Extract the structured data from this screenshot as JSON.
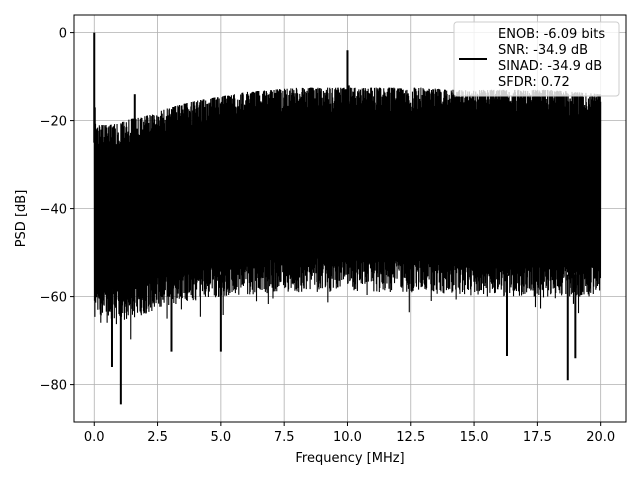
{
  "chart_data": {
    "type": "line",
    "title": "",
    "xlabel": "Frequency [MHz]",
    "ylabel": "PSD [dB]",
    "xlim": [
      -0.8,
      21.0
    ],
    "ylim": [
      -88.5,
      4.0
    ],
    "xticks": [
      0.0,
      2.5,
      5.0,
      7.5,
      10.0,
      12.5,
      15.0,
      17.5,
      20.0
    ],
    "xtick_labels": [
      "0.0",
      "2.5",
      "5.0",
      "7.5",
      "10.0",
      "12.5",
      "15.0",
      "17.5",
      "20.0"
    ],
    "yticks": [
      0,
      -20,
      -40,
      -60,
      -80
    ],
    "ytick_labels": [
      "0",
      "−20",
      "−40",
      "−60",
      "−80"
    ],
    "grid": true,
    "legend_position": "upper right",
    "line_color": "#000000",
    "series": [
      {
        "legend_lines": [
          "ENOB: -6.09 bits",
          "SNR: -34.9 dB",
          "SINAD: -34.9 dB",
          "SFDR: 0.72"
        ],
        "x_range": [
          0.0,
          20.0
        ],
        "upper_envelope": {
          "x": [
            0.0,
            0.1,
            0.5,
            1.0,
            1.5,
            2.0,
            2.5,
            3.0,
            4.0,
            5.0,
            6.0,
            7.0,
            8.0,
            9.0,
            10.0,
            11.0,
            12.0,
            13.0,
            14.0,
            15.0,
            16.0,
            17.0,
            18.0,
            19.0,
            20.0
          ],
          "y": [
            -20,
            -21,
            -21,
            -20.5,
            -19.5,
            -19,
            -18,
            -17,
            -15.5,
            -14.5,
            -13.5,
            -13,
            -12.5,
            -12.5,
            -12.5,
            -12.5,
            -12.5,
            -12.5,
            -13,
            -13,
            -13,
            -13,
            -13,
            -13.5,
            -14
          ]
        },
        "noise_floor": {
          "x": [
            0.0,
            1.0,
            2.0,
            3.0,
            5.0,
            7.5,
            10.0,
            12.5,
            15.0,
            17.5,
            20.0
          ],
          "y": [
            -62,
            -62,
            -60,
            -58,
            -56,
            -55,
            -55,
            -55,
            -56,
            -56,
            -56
          ]
        },
        "spurs": [
          {
            "x": 0.0,
            "y": 0.0
          },
          {
            "x": 0.02,
            "y": -17
          },
          {
            "x": 1.6,
            "y": -14
          },
          {
            "x": 10.0,
            "y": -4
          },
          {
            "x": 10.05,
            "y": -12
          }
        ],
        "deep_nulls": [
          {
            "x": 0.7,
            "y": -76
          },
          {
            "x": 1.05,
            "y": -84.5
          },
          {
            "x": 3.05,
            "y": -72.5
          },
          {
            "x": 5.0,
            "y": -72.5
          },
          {
            "x": 16.3,
            "y": -73.5
          },
          {
            "x": 18.7,
            "y": -79
          },
          {
            "x": 19.0,
            "y": -74
          }
        ]
      }
    ]
  }
}
